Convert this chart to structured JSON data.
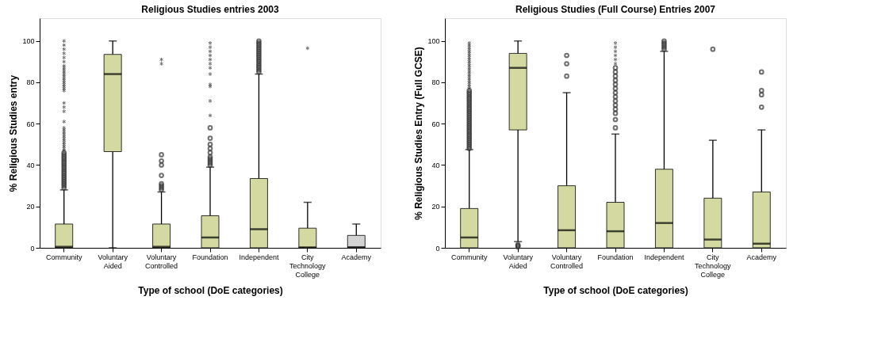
{
  "chart_data": [
    {
      "type": "box",
      "title": "Religious Studies entries 2003",
      "xlabel": "Type of school (DoE categories)",
      "ylabel": "% Religious Studies entry",
      "categories": [
        "Community",
        "Voluntary Aided",
        "Voluntary Controlled",
        "Foundation",
        "Independent",
        "City Technology College",
        "Academy"
      ],
      "colors": [
        "#d3d9a0",
        "#d3d9a0",
        "#d3d9a0",
        "#d3d9a0",
        "#d3d9a0",
        "#d3d9a0",
        "#d3d3d3"
      ],
      "ylim": [
        0,
        111
      ],
      "yticks": [
        0,
        20,
        40,
        60,
        80,
        100
      ],
      "grid": false,
      "boxes": [
        {
          "low": 0,
          "q1": 0,
          "median": 0.5,
          "q3": 11.5,
          "high": 28,
          "outliers": [
            29,
            30,
            31,
            32,
            33,
            34,
            35,
            36,
            37,
            38,
            39,
            40,
            41,
            42,
            43,
            44,
            45,
            46,
            47,
            48,
            49,
            50,
            51,
            52,
            53,
            54,
            55,
            56,
            57,
            58,
            61,
            66,
            68,
            70,
            76,
            77,
            78,
            79,
            80,
            81,
            82,
            83,
            84,
            85,
            86,
            87,
            88,
            90,
            92,
            94,
            96,
            98,
            100
          ]
        },
        {
          "low": 0,
          "q1": 46.5,
          "median": 84,
          "q3": 93.5,
          "high": 100
        },
        {
          "low": 0,
          "q1": 0,
          "median": 0.5,
          "q3": 11.5,
          "high": 27,
          "outliers": [
            28,
            29,
            30,
            31,
            35,
            40,
            42,
            45,
            89,
            91
          ]
        },
        {
          "low": 0,
          "q1": 0,
          "median": 5,
          "q3": 15.5,
          "high": 39,
          "outliers": [
            40,
            41,
            42,
            43,
            44,
            46,
            48,
            50,
            53,
            58,
            64,
            71,
            78,
            79,
            84,
            87,
            89,
            91,
            93,
            95,
            97,
            99
          ]
        },
        {
          "low": 0,
          "q1": 0,
          "median": 9,
          "q3": 33.5,
          "high": 84,
          "outliers": [
            85,
            86,
            87,
            88,
            89,
            90,
            91,
            92,
            93,
            94,
            95,
            96,
            97,
            98,
            99,
            100
          ]
        },
        {
          "low": 0,
          "q1": 0,
          "median": 0.2,
          "q3": 9.5,
          "high": 22,
          "outliers": [
            96.5
          ]
        },
        {
          "low": 0,
          "q1": 0,
          "median": 0.3,
          "q3": 6,
          "high": 11.5
        }
      ]
    },
    {
      "type": "box",
      "title": "Religious Studies (Full Course) Entries 2007",
      "xlabel": "Type of school (DoE categories)",
      "ylabel": "% Religious Studies Entry (Full GCSE)",
      "categories": [
        "Community",
        "Voluntary Aided",
        "Voluntary Controlled",
        "Foundation",
        "Independent",
        "City Technology College",
        "Academy"
      ],
      "colors": [
        "#d3d9a0",
        "#d3d9a0",
        "#d3d9a0",
        "#d3d9a0",
        "#d3d9a0",
        "#d3d9a0",
        "#d3d9a0"
      ],
      "ylim": [
        0,
        111
      ],
      "yticks": [
        0,
        20,
        40,
        60,
        80,
        100
      ],
      "grid": false,
      "boxes": [
        {
          "low": 0,
          "q1": 0,
          "median": 5,
          "q3": 19,
          "high": 47.5,
          "outliers": [
            48,
            49,
            50,
            51,
            52,
            53,
            54,
            55,
            56,
            57,
            58,
            59,
            60,
            61,
            62,
            63,
            64,
            65,
            66,
            67,
            68,
            69,
            70,
            71,
            72,
            73,
            74,
            75,
            76,
            77,
            78,
            79,
            80,
            81,
            82,
            83,
            84,
            85,
            86,
            87,
            88,
            89,
            90,
            91,
            92,
            93,
            94,
            95,
            96,
            97,
            98,
            99
          ]
        },
        {
          "low": 3,
          "q1": 57,
          "median": 87,
          "q3": 94,
          "high": 100,
          "outliers": [
            0.5,
            1,
            1.5
          ]
        },
        {
          "low": 0,
          "q1": 0,
          "median": 8.5,
          "q3": 30,
          "high": 75,
          "outliers": [
            83,
            89,
            93
          ]
        },
        {
          "low": 0,
          "q1": 0,
          "median": 8,
          "q3": 22,
          "high": 55,
          "outliers": [
            58,
            62,
            65,
            67,
            69,
            71,
            73,
            75,
            77,
            79,
            81,
            83,
            85,
            87,
            89,
            91,
            93,
            95,
            97,
            99
          ]
        },
        {
          "low": 0,
          "q1": 0,
          "median": 12,
          "q3": 38,
          "high": 95,
          "outliers": [
            96,
            97,
            98,
            99,
            100
          ]
        },
        {
          "low": 0,
          "q1": 0,
          "median": 4,
          "q3": 24,
          "high": 52,
          "outliers": [
            96
          ]
        },
        {
          "low": 0,
          "q1": 0,
          "median": 2,
          "q3": 27,
          "high": 57,
          "outliers": [
            68,
            74,
            76,
            85
          ]
        }
      ]
    }
  ]
}
